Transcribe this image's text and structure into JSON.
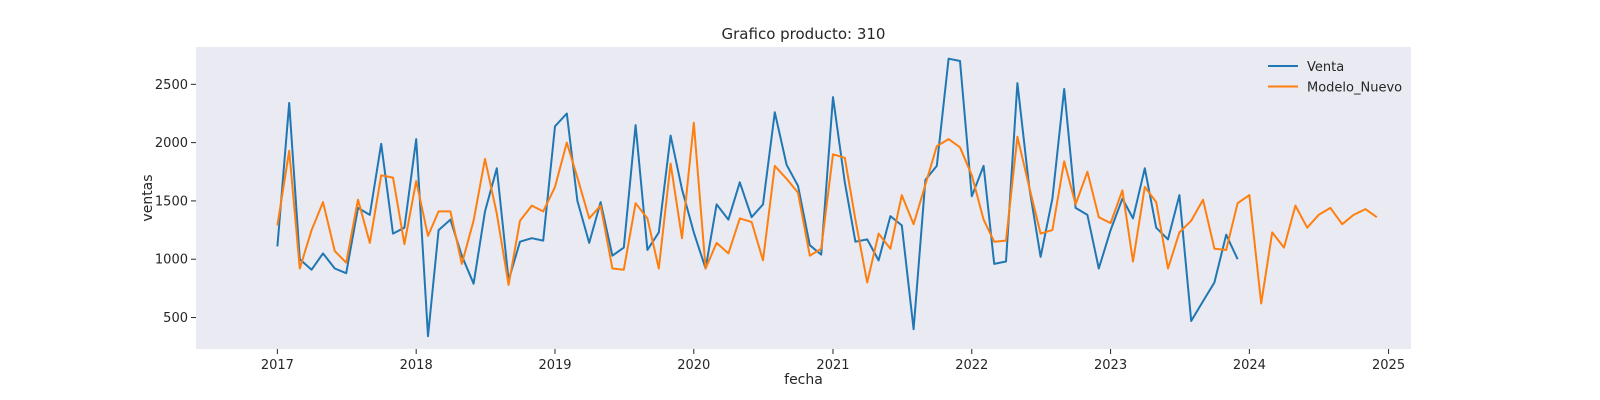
{
  "chart_data": {
    "type": "line",
    "title": "Grafico producto: 310",
    "xlabel": "fecha",
    "ylabel": "ventas",
    "xlim": [
      "2016-06-01",
      "2025-03-01"
    ],
    "ylim": [
      230,
      2820
    ],
    "x_ticks": [
      "2017",
      "2018",
      "2019",
      "2020",
      "2021",
      "2022",
      "2023",
      "2024",
      "2025"
    ],
    "y_ticks": [
      500,
      1000,
      1500,
      2000,
      2500
    ],
    "grid": false,
    "legend": "top-right",
    "background": "#eaeaf2",
    "series": [
      {
        "name": "Venta",
        "color": "#1f77b4",
        "start": "2017-01",
        "values": [
          1110,
          2340,
          1000,
          910,
          1050,
          920,
          880,
          1440,
          1380,
          1990,
          1220,
          1270,
          2030,
          340,
          1250,
          1340,
          1030,
          790,
          1410,
          1780,
          820,
          1150,
          1180,
          1160,
          2140,
          2250,
          1500,
          1140,
          1490,
          1030,
          1100,
          2150,
          1080,
          1230,
          2060,
          1600,
          1230,
          920,
          1470,
          1340,
          1660,
          1360,
          1470,
          2260,
          1810,
          1630,
          1120,
          1040,
          2390,
          1660,
          1150,
          1170,
          990,
          1370,
          1290,
          400,
          1680,
          1800,
          2720,
          2700,
          1540,
          1800,
          960,
          980,
          2510,
          1620,
          1020,
          1520,
          2460,
          1440,
          1380,
          920,
          1250,
          1520,
          1350,
          1780,
          1270,
          1170,
          1550,
          470,
          640,
          800,
          1210,
          1000
        ]
      },
      {
        "name": "Modelo_Nuevo",
        "color": "#ff7f0e",
        "start": "2017-01",
        "values": [
          1290,
          1930,
          920,
          1250,
          1490,
          1070,
          970,
          1510,
          1140,
          1720,
          1700,
          1130,
          1670,
          1200,
          1410,
          1410,
          960,
          1330,
          1860,
          1390,
          780,
          1330,
          1460,
          1410,
          1620,
          2000,
          1700,
          1350,
          1460,
          920,
          910,
          1480,
          1350,
          920,
          1820,
          1180,
          2170,
          920,
          1140,
          1050,
          1350,
          1320,
          990,
          1800,
          1690,
          1570,
          1030,
          1090,
          1900,
          1870,
          1340,
          800,
          1220,
          1090,
          1550,
          1300,
          1640,
          1970,
          2030,
          1960,
          1720,
          1340,
          1150,
          1160,
          2050,
          1620,
          1220,
          1250,
          1840,
          1470,
          1750,
          1360,
          1310,
          1590,
          980,
          1620,
          1490,
          920,
          1230,
          1330,
          1510,
          1090,
          1080,
          1480,
          1550,
          620,
          1230,
          1100,
          1460,
          1270,
          1380,
          1440,
          1300,
          1380,
          1430,
          1360
        ]
      }
    ]
  }
}
